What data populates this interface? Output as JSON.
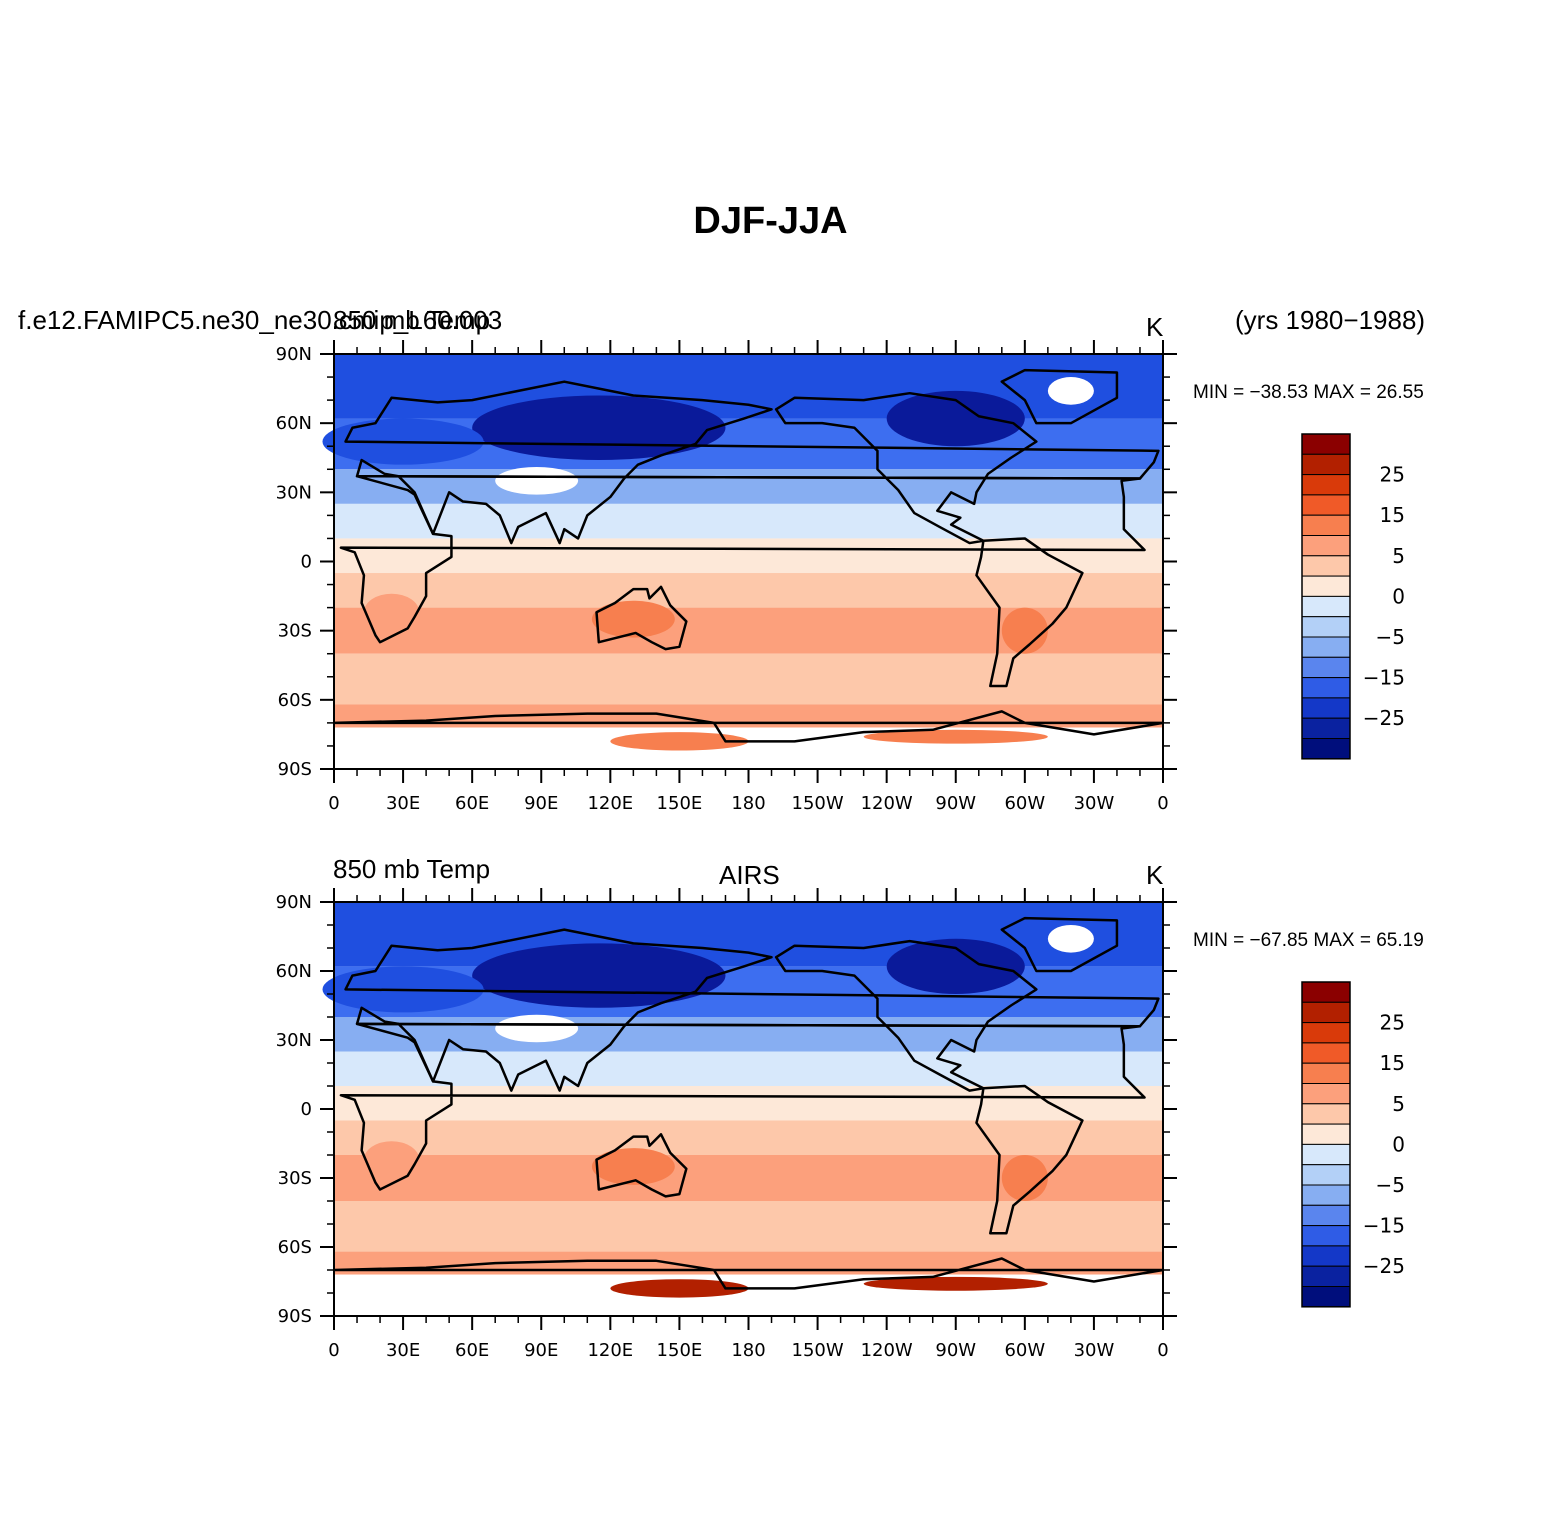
{
  "title": "DJF-JJA",
  "years": "(yrs 1980−1988)",
  "panels": [
    {
      "left_label": "f.e12.FAMIPC5.ne30_ne30.cmip_L60.003",
      "center_label": "850 mb Temp",
      "unit": "K",
      "stats": "MIN = −38.53 MAX =  26.55"
    },
    {
      "left_label": "850 mb Temp",
      "center_label": "AIRS",
      "unit": "K",
      "stats": "MIN = −67.85 MAX =  65.19"
    }
  ],
  "lat_ticks": [
    "90N",
    "60N",
    "30N",
    "0",
    "30S",
    "60S",
    "90S"
  ],
  "lon_ticks": [
    "0",
    "30E",
    "60E",
    "90E",
    "120E",
    "150E",
    "180",
    "150W",
    "120W",
    "90W",
    "60W",
    "30W",
    "0"
  ],
  "colorbar": {
    "colors": [
      "#8b0000",
      "#b22000",
      "#d93a0a",
      "#f05a28",
      "#f77f4f",
      "#fca07c",
      "#fdc8aa",
      "#fde8d8",
      "#d7e8fb",
      "#b3d0f7",
      "#87aef2",
      "#5a85ee",
      "#2f5ce6",
      "#1438c8",
      "#0a22a0",
      "#000e7c"
    ],
    "labels": [
      "25",
      "15",
      "5",
      "0",
      "−5",
      "−15",
      "−25"
    ]
  },
  "map_colors": {
    "deep_blue": "#0a1a9a",
    "blue": "#1f4fe0",
    "mid_blue": "#3d6ef0",
    "light_blue": "#87aef2",
    "pale_blue": "#d7e8fb",
    "cream": "#fde8d8",
    "peach": "#fdc8aa",
    "salmon": "#fca07c",
    "orange": "#f77f4f",
    "dark_red": "#b22000"
  }
}
